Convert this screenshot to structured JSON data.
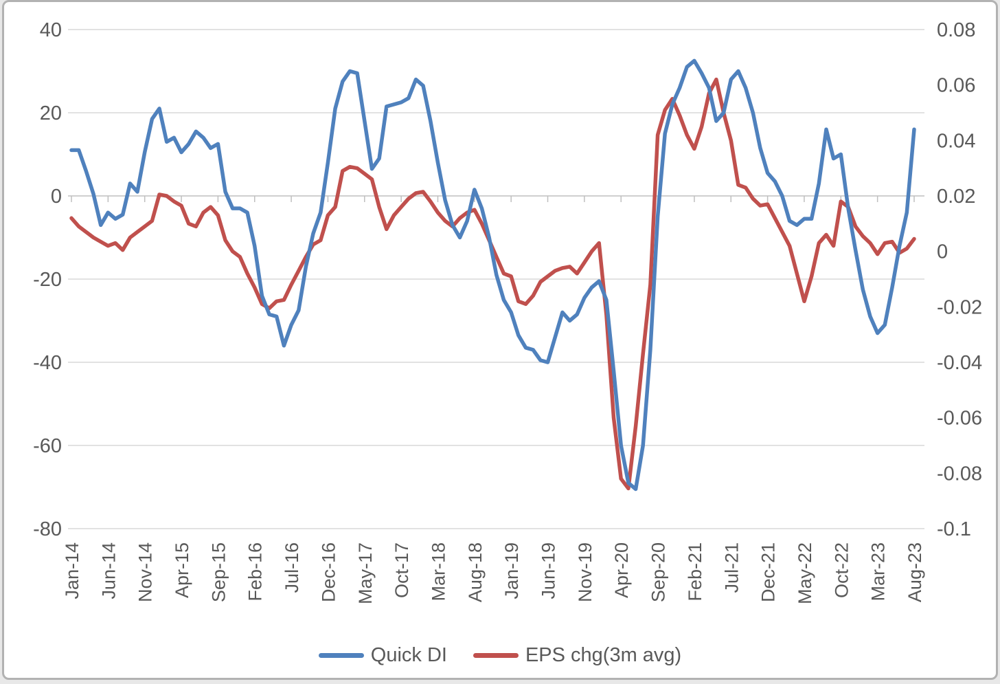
{
  "window": {
    "background": "#ffffff",
    "border_color": "#b2b2b2",
    "text_color": "#595959",
    "gridline_color": "#d9d9d9",
    "axis_line_color": "#bfbfbf"
  },
  "chart_data": {
    "type": "line",
    "title": "",
    "xlabel": "",
    "ylabel": "",
    "grid": true,
    "legend_position": "bottom",
    "n_points": 116,
    "x_start": "Jan-14",
    "x_end": "Aug-23",
    "x_points_per_tick": 5,
    "x_tick_labels": [
      "Jan-14",
      "Jun-14",
      "Nov-14",
      "Apr-15",
      "Sep-15",
      "Feb-16",
      "Jul-16",
      "Dec-16",
      "May-17",
      "Oct-17",
      "Mar-18",
      "Aug-18",
      "Jan-19",
      "Jun-19",
      "Nov-19",
      "Apr-20",
      "Sep-20",
      "Feb-21",
      "Jul-21",
      "Dec-21",
      "May-22",
      "Oct-22",
      "Mar-23",
      "Aug-23"
    ],
    "left_axis": {
      "min": -80,
      "max": 40,
      "tick_labels": [
        "40",
        "20",
        "0",
        "-20",
        "-40",
        "-60",
        "-80"
      ],
      "tick_values": [
        40,
        20,
        0,
        -20,
        -40,
        -60,
        -80
      ]
    },
    "right_axis": {
      "min": -0.1,
      "max": 0.08,
      "tick_labels": [
        "0.08",
        "0.06",
        "0.04",
        "0.02",
        "0",
        "-0.02",
        "-0.04",
        "-0.06",
        "-0.08",
        "-0.1"
      ],
      "tick_values": [
        0.08,
        0.06,
        0.04,
        0.02,
        0,
        -0.02,
        -0.04,
        -0.06,
        -0.08,
        -0.1
      ]
    },
    "series": [
      {
        "name": "Quick DI",
        "axis": "left",
        "color": "#4f81bd",
        "values": [
          11,
          11,
          6,
          0.5,
          -7,
          -4,
          -5.5,
          -4.5,
          3,
          1,
          10.5,
          18.5,
          21,
          13,
          14,
          10.5,
          12.5,
          15.5,
          14,
          11.5,
          12.5,
          1,
          -3,
          -3,
          -4,
          -12,
          -24,
          -28.5,
          -29,
          -36,
          -31,
          -27.5,
          -17,
          -9,
          -4,
          8,
          21,
          27.5,
          30,
          29.5,
          18,
          6.5,
          9,
          21.5,
          22,
          22.5,
          23.5,
          28,
          26.5,
          18,
          8,
          -1,
          -7,
          -10,
          -6,
          1.5,
          -3,
          -10,
          -19,
          -25,
          -28,
          -33.5,
          -36.5,
          -37,
          -39.5,
          -40,
          -34,
          -28,
          -30,
          -28.5,
          -24.5,
          -22,
          -20.5,
          -25,
          -42,
          -60,
          -69,
          -70.5,
          -60,
          -37,
          -5,
          15,
          22,
          26,
          31,
          32.5,
          29.5,
          26,
          18,
          20,
          28,
          30,
          26,
          20,
          11.5,
          5.5,
          3.5,
          0,
          -6,
          -7,
          -5.5,
          -5.5,
          3,
          16,
          9,
          10,
          -3,
          -13,
          -22.5,
          -29,
          -33,
          -31,
          -22,
          -12,
          -4,
          16
        ]
      },
      {
        "name": "EPS chg(3m avg)",
        "axis": "right",
        "color": "#c0504d",
        "values": [
          0.012,
          0.009,
          0.007,
          0.005,
          0.0035,
          0.002,
          0.003,
          0.0005,
          0.005,
          0.007,
          0.009,
          0.011,
          0.0205,
          0.02,
          0.018,
          0.0165,
          0.01,
          0.009,
          0.014,
          0.016,
          0.013,
          0.004,
          0,
          -0.002,
          -0.008,
          -0.013,
          -0.019,
          -0.0205,
          -0.018,
          -0.0175,
          -0.012,
          -0.007,
          -0.002,
          0.0025,
          0.004,
          0.013,
          0.016,
          0.029,
          0.0305,
          0.03,
          0.028,
          0.026,
          0.016,
          0.008,
          0.013,
          0.016,
          0.019,
          0.021,
          0.0215,
          0.018,
          0.014,
          0.011,
          0.009,
          0.012,
          0.014,
          0.015,
          0.01,
          0.004,
          -0.002,
          -0.008,
          -0.009,
          -0.018,
          -0.019,
          -0.016,
          -0.011,
          -0.009,
          -0.007,
          -0.006,
          -0.0055,
          -0.008,
          -0.004,
          0,
          0.003,
          -0.023,
          -0.06,
          -0.082,
          -0.0855,
          -0.063,
          -0.037,
          -0.012,
          0.042,
          0.051,
          0.055,
          0.049,
          0.042,
          0.037,
          0.045,
          0.057,
          0.062,
          0.05,
          0.04,
          0.024,
          0.023,
          0.019,
          0.0165,
          0.017,
          0.012,
          0.007,
          0.002,
          -0.008,
          -0.018,
          -0.009,
          0.003,
          0.006,
          0.002,
          0.018,
          0.016,
          0.009,
          0.0055,
          0.003,
          -0.001,
          0.003,
          0.0035,
          -0.0005,
          0.001,
          0.0045
        ]
      }
    ]
  }
}
